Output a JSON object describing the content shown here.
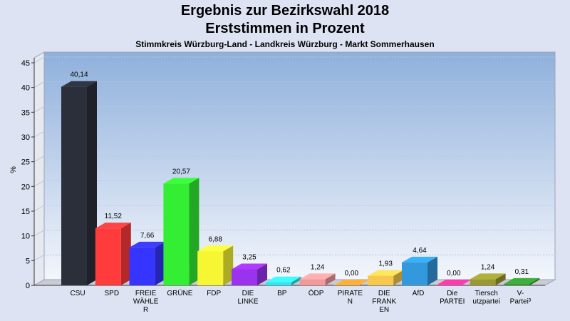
{
  "header": {
    "title_line1": "Ergebnis zur Bezirkswahl 2018",
    "title_line2": "Erststimmen in Prozent",
    "subtitle": "Stimmkreis Würzburg-Land - Landkreis Würzburg - Markt Sommerhausen"
  },
  "chart_data": {
    "type": "bar",
    "ylabel": "%",
    "xlabel": "",
    "ylim": [
      0,
      46
    ],
    "yticks": [
      0,
      5,
      10,
      15,
      20,
      25,
      30,
      35,
      40,
      45
    ],
    "grid": true,
    "categories": [
      [
        "CSU"
      ],
      [
        "SPD"
      ],
      [
        "FREIE",
        "WÄHLE",
        "R"
      ],
      [
        "GRÜNE"
      ],
      [
        "FDP"
      ],
      [
        "DIE",
        "LINKE"
      ],
      [
        "BP"
      ],
      [
        "ÖDP"
      ],
      [
        "PIRATE",
        "N"
      ],
      [
        "DIE",
        "FRANK",
        "EN"
      ],
      [
        "AfD"
      ],
      [
        "Die",
        "PARTEI"
      ],
      [
        "Tiersch",
        "utzpartei"
      ],
      [
        "V-",
        "Partei³"
      ]
    ],
    "values": [
      40.14,
      11.52,
      7.66,
      20.57,
      6.88,
      3.25,
      0.62,
      1.24,
      0.0,
      1.93,
      4.64,
      0.0,
      1.24,
      0.31
    ],
    "value_labels": [
      "40,14",
      "11,52",
      "7,66",
      "20,57",
      "6,88",
      "3,25",
      "0,62",
      "1,24",
      "0,00",
      "1,93",
      "4,64",
      "0,00",
      "1,24",
      "0,31"
    ],
    "colors": [
      "#2b2f3a",
      "#ff3b3b",
      "#3535ff",
      "#33ee33",
      "#f6f633",
      "#9933ee",
      "#33e6ee",
      "#f29a9a",
      "#ff9a2e",
      "#f6c94e",
      "#3399dd",
      "#ff3399",
      "#999933",
      "#339933"
    ]
  }
}
